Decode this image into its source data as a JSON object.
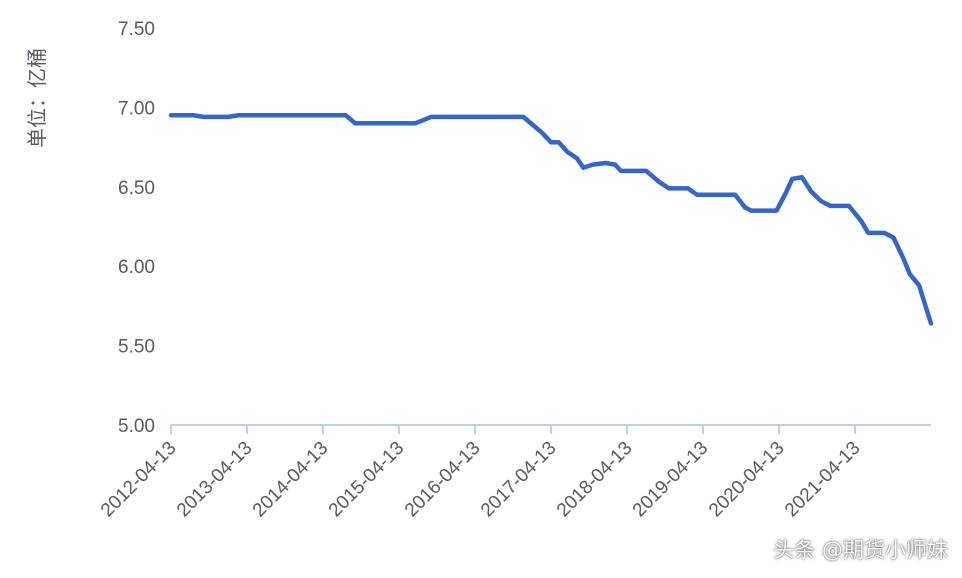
{
  "chart_data": {
    "type": "line",
    "ylabel": "单位：亿桶",
    "ylim": [
      5.0,
      7.5
    ],
    "y_ticks": [
      "5.00",
      "5.50",
      "6.00",
      "6.50",
      "7.00",
      "7.50"
    ],
    "x_ticks": [
      "2012-04-13",
      "2013-04-13",
      "2014-04-13",
      "2015-04-13",
      "2016-04-13",
      "2017-04-13",
      "2018-04-13",
      "2019-04-13",
      "2020-04-13",
      "2021-04-13"
    ],
    "grid": false,
    "legend": "none",
    "series": [
      {
        "color": "#3366cc",
        "points": [
          [
            "2012-04-13",
            6.95
          ],
          [
            "2012-08-01",
            6.95
          ],
          [
            "2012-09-15",
            6.94
          ],
          [
            "2013-01-15",
            6.94
          ],
          [
            "2013-03-01",
            6.95
          ],
          [
            "2014-08-01",
            6.95
          ],
          [
            "2014-09-15",
            6.9
          ],
          [
            "2015-07-01",
            6.9
          ],
          [
            "2015-09-15",
            6.94
          ],
          [
            "2016-02-01",
            6.94
          ],
          [
            "2016-12-01",
            6.94
          ],
          [
            "2017-01-15",
            6.89
          ],
          [
            "2017-03-01",
            6.84
          ],
          [
            "2017-04-13",
            6.78
          ],
          [
            "2017-05-20",
            6.78
          ],
          [
            "2017-07-01",
            6.72
          ],
          [
            "2017-08-15",
            6.68
          ],
          [
            "2017-09-15",
            6.62
          ],
          [
            "2017-11-01",
            6.64
          ],
          [
            "2018-01-01",
            6.65
          ],
          [
            "2018-02-15",
            6.64
          ],
          [
            "2018-03-15",
            6.6
          ],
          [
            "2018-07-15",
            6.6
          ],
          [
            "2018-09-15",
            6.53
          ],
          [
            "2018-11-01",
            6.49
          ],
          [
            "2019-02-01",
            6.49
          ],
          [
            "2019-03-15",
            6.45
          ],
          [
            "2019-09-15",
            6.45
          ],
          [
            "2019-11-01",
            6.37
          ],
          [
            "2019-12-01",
            6.35
          ],
          [
            "2020-04-01",
            6.35
          ],
          [
            "2020-05-15",
            6.46
          ],
          [
            "2020-06-15",
            6.55
          ],
          [
            "2020-08-01",
            6.56
          ],
          [
            "2020-09-15",
            6.47
          ],
          [
            "2020-11-01",
            6.41
          ],
          [
            "2020-12-15",
            6.38
          ],
          [
            "2021-03-15",
            6.38
          ],
          [
            "2021-05-15",
            6.28
          ],
          [
            "2021-06-15",
            6.21
          ],
          [
            "2021-09-01",
            6.21
          ],
          [
            "2021-10-15",
            6.18
          ],
          [
            "2021-12-01",
            6.05
          ],
          [
            "2022-01-01",
            5.95
          ],
          [
            "2022-02-15",
            5.88
          ],
          [
            "2022-03-20",
            5.74
          ],
          [
            "2022-04-13",
            5.64
          ]
        ]
      }
    ]
  },
  "watermark": "头条 @期货小师妹"
}
